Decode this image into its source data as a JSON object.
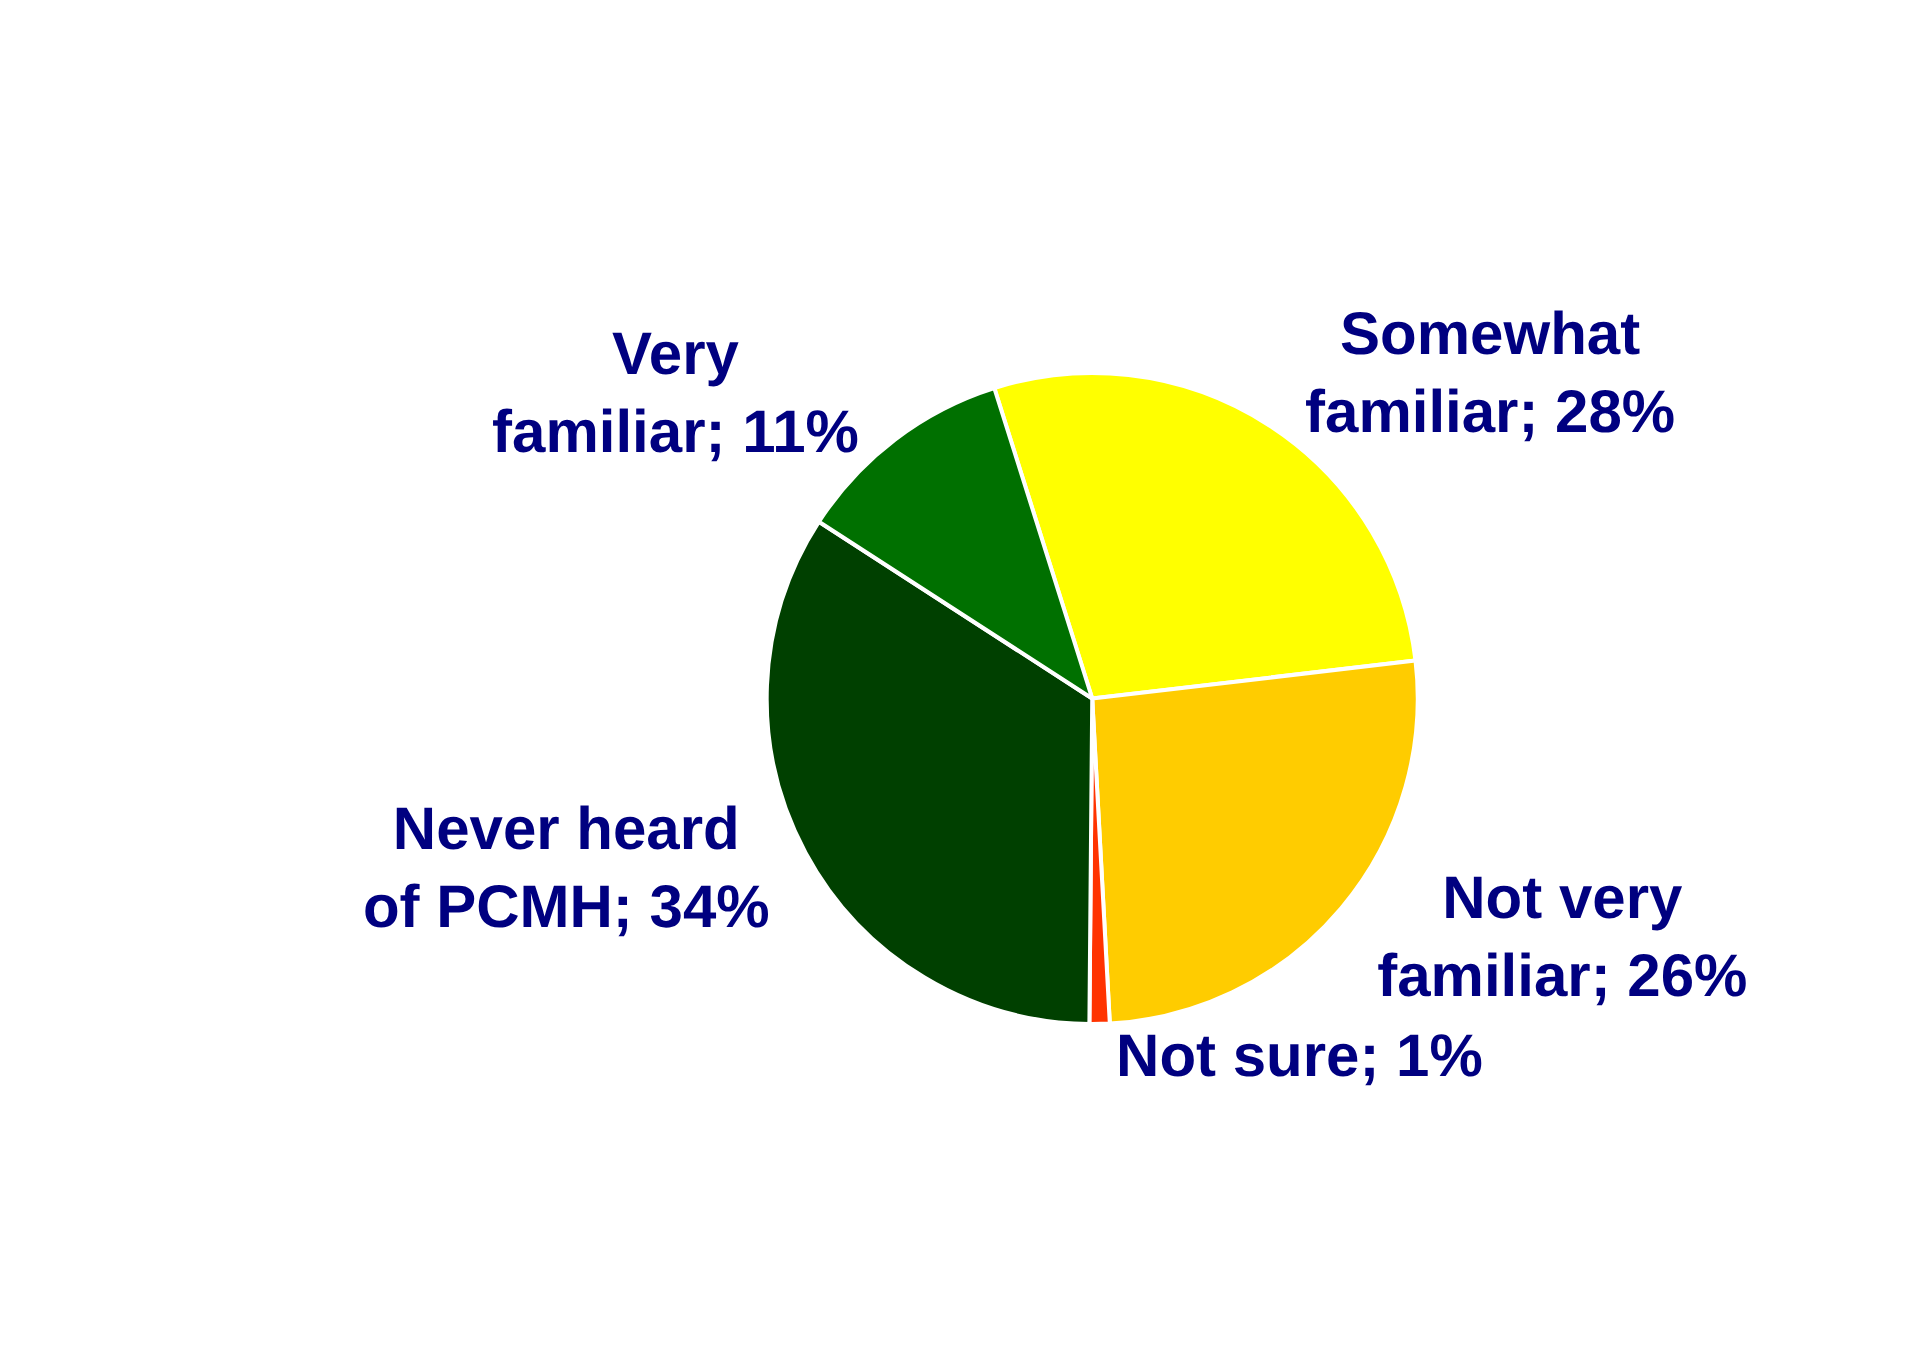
{
  "chart_data": {
    "type": "pie",
    "categories": [
      "Somewhat familiar",
      "Not very familiar",
      "Not sure",
      "Never heard of PCMH",
      "Very familiar"
    ],
    "values": [
      28,
      26,
      1,
      34,
      11
    ],
    "value_labels": [
      "28%",
      "26%",
      "1%",
      "34%",
      "11%"
    ],
    "colors": [
      "#ffff00",
      "#ffcc00",
      "#ff3300",
      "#004000",
      "#007000"
    ],
    "legend": false
  }
}
